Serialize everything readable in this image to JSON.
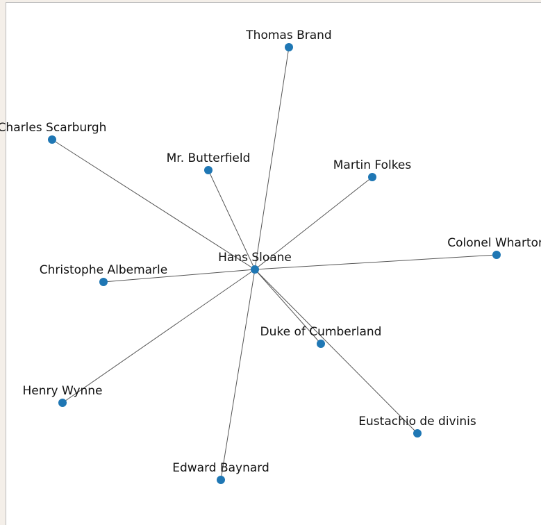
{
  "nodes": [
    {
      "label": "Hans Sloane"
    },
    {
      "label": "Thomas Brand"
    },
    {
      "label": "Charles Scarburgh"
    },
    {
      "label": "Mr. Butterfield"
    },
    {
      "label": "Martin Folkes"
    },
    {
      "label": "Colonel Wharton"
    },
    {
      "label": "Christophe Albemarle"
    },
    {
      "label": "Duke of Cumberland"
    },
    {
      "label": "Henry Wynne"
    },
    {
      "label": "Eustachio de divinis"
    },
    {
      "label": "Edward Baynard"
    }
  ]
}
